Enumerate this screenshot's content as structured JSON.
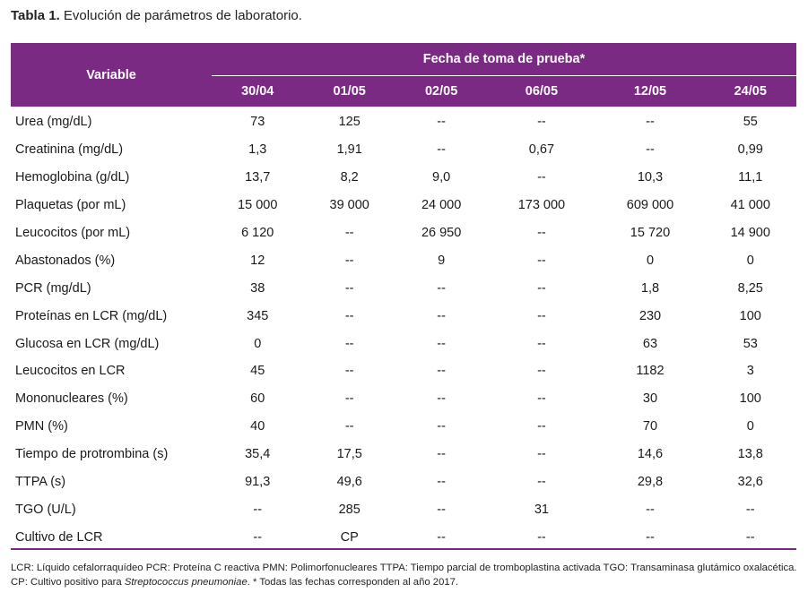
{
  "caption": {
    "label": "Tabla 1.",
    "text": "Evolución de parámetros de laboratorio."
  },
  "table": {
    "variable_header": "Variable",
    "date_group_header": "Fecha de toma de prueba*",
    "dates": [
      "30/04",
      "01/05",
      "02/05",
      "06/05",
      "12/05",
      "24/05"
    ],
    "rows": [
      {
        "variable": "Urea (mg/dL)",
        "values": [
          "73",
          "125",
          "--",
          "--",
          "--",
          "55"
        ]
      },
      {
        "variable": "Creatinina (mg/dL)",
        "values": [
          "1,3",
          "1,91",
          "--",
          "0,67",
          "--",
          "0,99"
        ]
      },
      {
        "variable": "Hemoglobina (g/dL)",
        "values": [
          "13,7",
          "8,2",
          "9,0",
          "--",
          "10,3",
          "11,1"
        ]
      },
      {
        "variable": "Plaquetas (por mL)",
        "values": [
          "15 000",
          "39 000",
          "24 000",
          "173 000",
          "609 000",
          "41 000"
        ]
      },
      {
        "variable": "Leucocitos (por mL)",
        "values": [
          "6 120",
          "--",
          "26 950",
          "--",
          "15 720",
          "14 900"
        ]
      },
      {
        "variable": "Abastonados (%)",
        "values": [
          "12",
          "--",
          "9",
          "--",
          "0",
          "0"
        ]
      },
      {
        "variable": "PCR (mg/dL)",
        "values": [
          "38",
          "--",
          "--",
          "--",
          "1,8",
          "8,25"
        ]
      },
      {
        "variable": "Proteínas en LCR (mg/dL)",
        "values": [
          "345",
          "--",
          "--",
          "--",
          "230",
          "100"
        ]
      },
      {
        "variable": "Glucosa en LCR (mg/dL)",
        "values": [
          "0",
          "--",
          "--",
          "--",
          "63",
          "53"
        ]
      },
      {
        "variable": "Leucocitos en LCR",
        "values": [
          "45",
          "--",
          "--",
          "--",
          "1182",
          "3"
        ]
      },
      {
        "variable": "Mononucleares (%)",
        "values": [
          "60",
          "--",
          "--",
          "--",
          "30",
          "100"
        ]
      },
      {
        "variable": "PMN (%)",
        "values": [
          "40",
          "--",
          "--",
          "--",
          "70",
          "0"
        ]
      },
      {
        "variable": "Tiempo de protrombina (s)",
        "values": [
          "35,4",
          "17,5",
          "--",
          "--",
          "14,6",
          "13,8"
        ]
      },
      {
        "variable": "TTPA (s)",
        "values": [
          "91,3",
          "49,6",
          "--",
          "--",
          "29,8",
          "32,6"
        ]
      },
      {
        "variable": "TGO (U/L)",
        "values": [
          "--",
          "285",
          "--",
          "31",
          "--",
          "--"
        ]
      },
      {
        "variable": "Cultivo de LCR",
        "values": [
          "--",
          "CP",
          "--",
          "--",
          "--",
          "--"
        ]
      }
    ]
  },
  "notes": {
    "line1": "LCR: Líquido cefalorraquídeo PCR: Proteína C reactiva PMN: Polimorfonucleares TTPA: Tiempo parcial de tromboplastina activada TGO: Transaminasa glutámico oxalacética.",
    "line2_prefix": "CP: Cultivo positivo para ",
    "line2_organism": "Streptococcus pneumoniae",
    "line2_suffix": ". * Todas las fechas corresponden al año 2017."
  },
  "colors": {
    "header_bg": "#7b2a84",
    "header_text": "#ffffff"
  }
}
